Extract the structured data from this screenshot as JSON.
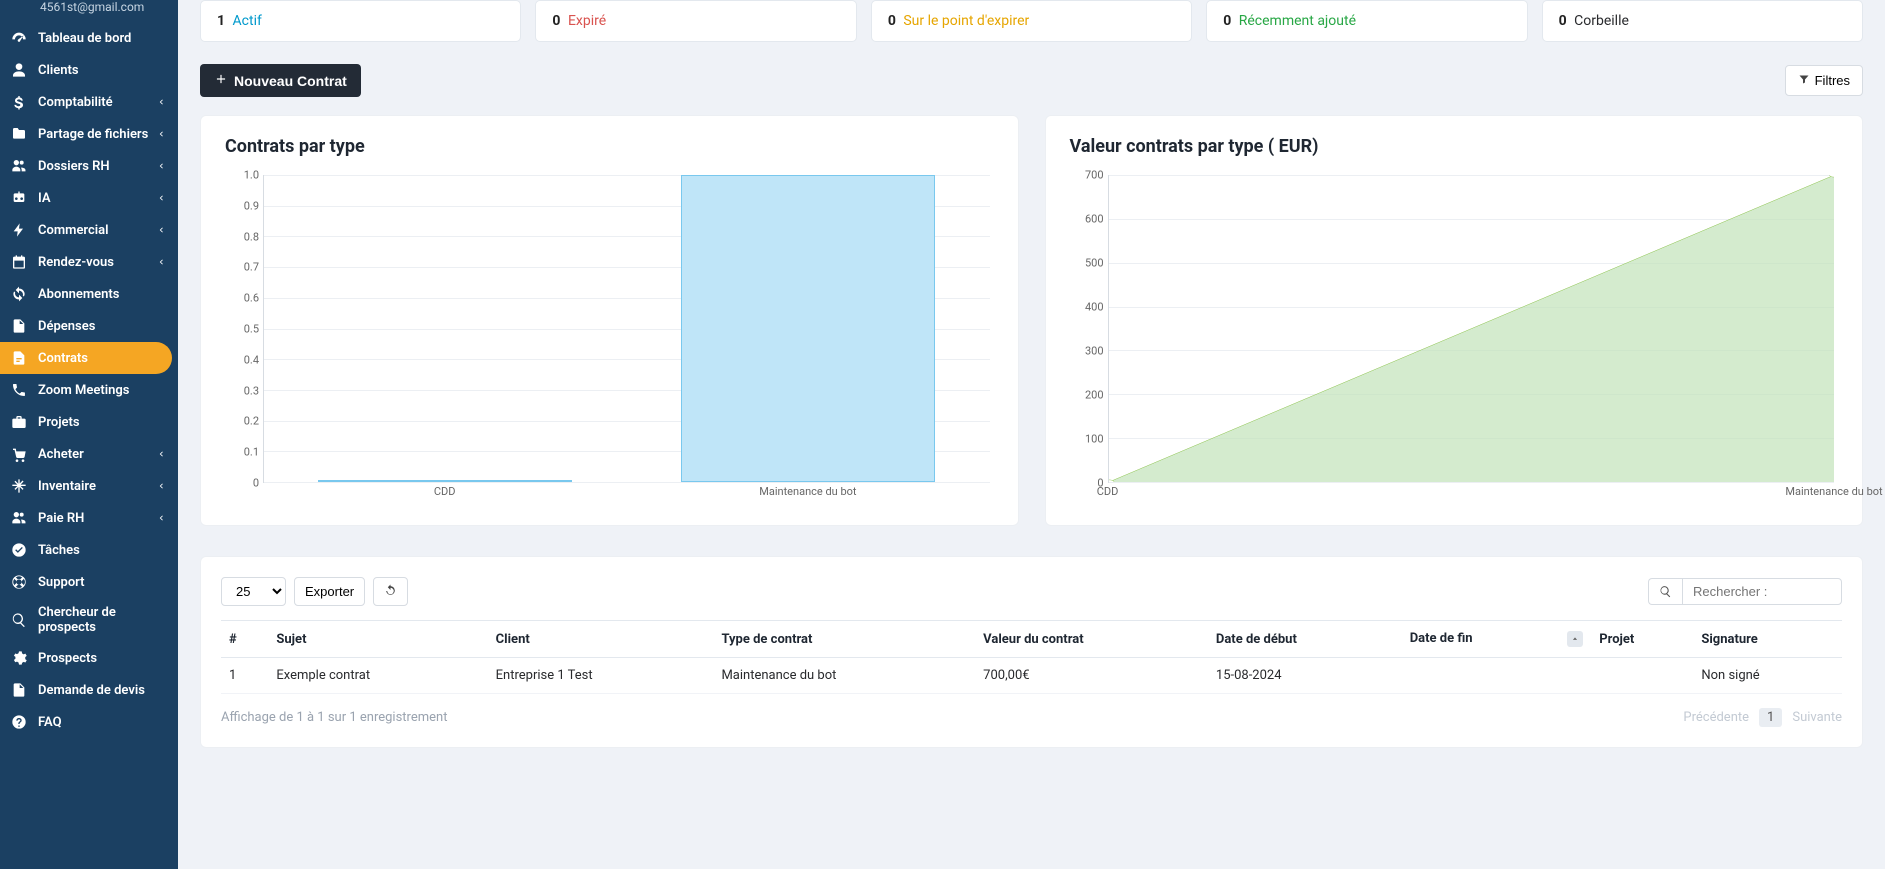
{
  "user": {
    "email": "4561st@gmail.com"
  },
  "sidebar": {
    "items": [
      {
        "label": "Tableau de bord",
        "icon": "tachometer",
        "expandable": false
      },
      {
        "label": "Clients",
        "icon": "user",
        "expandable": false
      },
      {
        "label": "Comptabilité",
        "icon": "dollar",
        "expandable": true
      },
      {
        "label": "Partage de fichiers",
        "icon": "folder",
        "expandable": true
      },
      {
        "label": "Dossiers RH",
        "icon": "users",
        "expandable": true
      },
      {
        "label": "IA",
        "icon": "robot",
        "expandable": true
      },
      {
        "label": "Commercial",
        "icon": "bolt",
        "expandable": true
      },
      {
        "label": "Rendez-vous",
        "icon": "calendar",
        "expandable": true
      },
      {
        "label": "Abonnements",
        "icon": "sync",
        "expandable": false
      },
      {
        "label": "Dépenses",
        "icon": "document",
        "expandable": false
      },
      {
        "label": "Contrats",
        "icon": "contract",
        "expandable": false,
        "active": true
      },
      {
        "label": "Zoom Meetings",
        "icon": "phone",
        "expandable": false
      },
      {
        "label": "Projets",
        "icon": "briefcase",
        "expandable": false
      },
      {
        "label": "Acheter",
        "icon": "cart",
        "expandable": true
      },
      {
        "label": "Inventaire",
        "icon": "snowflake",
        "expandable": true
      },
      {
        "label": "Paie RH",
        "icon": "users",
        "expandable": true
      },
      {
        "label": "Tâches",
        "icon": "check",
        "expandable": false
      },
      {
        "label": "Support",
        "icon": "lifebuoy",
        "expandable": false
      },
      {
        "label": "Chercheur de prospects",
        "icon": "search",
        "expandable": false
      },
      {
        "label": "Prospects",
        "icon": "gear",
        "expandable": false
      },
      {
        "label": "Demande de devis",
        "icon": "file",
        "expandable": false
      },
      {
        "label": "FAQ",
        "icon": "question",
        "expandable": false
      }
    ]
  },
  "stats": {
    "actif": {
      "count": "1",
      "label": "Actif"
    },
    "expire": {
      "count": "0",
      "label": "Expiré"
    },
    "soon": {
      "count": "0",
      "label": "Sur le point d'expirer"
    },
    "recent": {
      "count": "0",
      "label": "Récemment ajouté"
    },
    "trash": {
      "count": "0",
      "label": "Corbeille"
    }
  },
  "toolbar": {
    "new_label": "Nouveau Contrat",
    "filters_label": "Filtres"
  },
  "chart_bar": {
    "title": "Contrats par type",
    "type": "bar",
    "categories": [
      "CDD",
      "Maintenance du bot"
    ],
    "values": [
      0,
      1
    ],
    "ylim": [
      0,
      1.0
    ],
    "ytick_step": 0.1,
    "yticks": [
      "0",
      "0.1",
      "0.2",
      "0.3",
      "0.4",
      "0.5",
      "0.6",
      "0.7",
      "0.8",
      "0.9",
      "1.0"
    ],
    "bar_color": "#bfe5f8",
    "bar_border": "#79c8ee",
    "grid_color": "#eceff3",
    "background": "#ffffff"
  },
  "chart_area": {
    "title": "Valeur contrats par type ( EUR)",
    "type": "area",
    "categories": [
      "CDD",
      "Maintenance du bot"
    ],
    "values": [
      0,
      700
    ],
    "ylim": [
      0,
      700
    ],
    "ytick_step": 100,
    "yticks": [
      "0",
      "100",
      "200",
      "300",
      "400",
      "500",
      "600",
      "700"
    ],
    "fill_color": "#c2e3b9",
    "line_color": "#8bc34a",
    "grid_color": "#eceff3",
    "background": "#ffffff"
  },
  "table": {
    "page_size": "25",
    "export_label": "Exporter",
    "search_placeholder": "Rechercher :",
    "columns": [
      "#",
      "Sujet",
      "Client",
      "Type de contrat",
      "Valeur du contrat",
      "Date de début",
      "Date de fin",
      "Projet",
      "Signature"
    ],
    "sorted_col": "Date de fin",
    "rows": [
      {
        "n": "1",
        "sujet": "Exemple contrat",
        "client": "Entreprise 1 Test",
        "type": "Maintenance du bot",
        "valeur": "700,00€",
        "debut": "15-08-2024",
        "fin": "",
        "projet": "",
        "signature": "Non signé"
      }
    ],
    "footer_info": "Affichage de 1 à 1 sur 1 enregistrement",
    "pager": {
      "prev": "Précédente",
      "next": "Suivante",
      "page": "1"
    }
  }
}
